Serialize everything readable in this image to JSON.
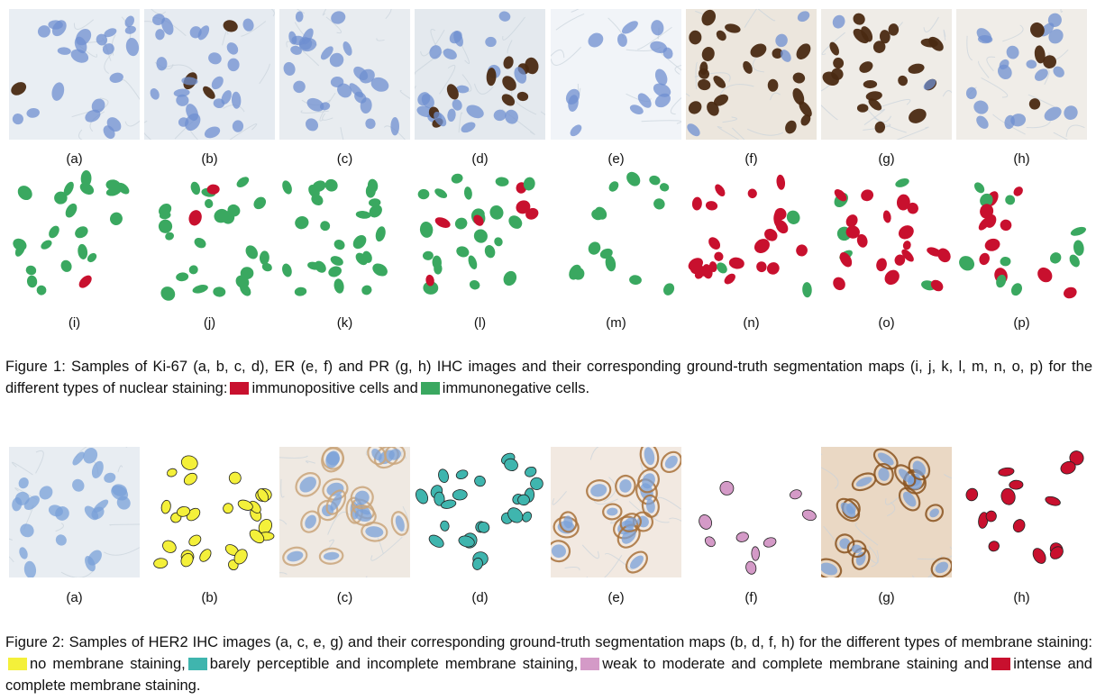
{
  "figure1": {
    "image_labels": [
      "(a)",
      "(b)",
      "(c)",
      "(d)",
      "(e)",
      "(f)",
      "(g)",
      "(h)"
    ],
    "map_labels": [
      "(i)",
      "(j)",
      "(k)",
      "(l)",
      "(m)",
      "(n)",
      "(o)",
      "(p)"
    ],
    "caption": {
      "part1": "Figure 1: Samples of Ki-67 (a, b, c, d), ER (e, f) and PR (g, h) IHC images and their corresponding ground-truth segmentation maps (i, j, k, l, m, n, o, p) for the different types of nuclear staining:",
      "part2": "immunopositive cells and",
      "part3": "immunonegative cells."
    },
    "colors": {
      "positive": "#c8102e",
      "negative": "#3aa860"
    }
  },
  "figure2": {
    "labels": [
      "(a)",
      "(b)",
      "(c)",
      "(d)",
      "(e)",
      "(f)",
      "(g)",
      "(h)"
    ],
    "caption": {
      "part1": "Figure 2: Samples of HER2 IHC images (a, c, e, g) and their corresponding ground-truth segmentation maps (b, d, f, h) for the different types of membrane staining:",
      "part2": "no membrane staining,",
      "part3": "barely perceptible and incomplete membrane staining,",
      "part4": "weak to moderate and complete membrane staining and",
      "part5": "intense and complete membrane staining."
    },
    "colors": {
      "none": "#f4f03a",
      "barely": "#3fb5ae",
      "weak": "#d49ac7",
      "intense": "#c8102e"
    }
  }
}
